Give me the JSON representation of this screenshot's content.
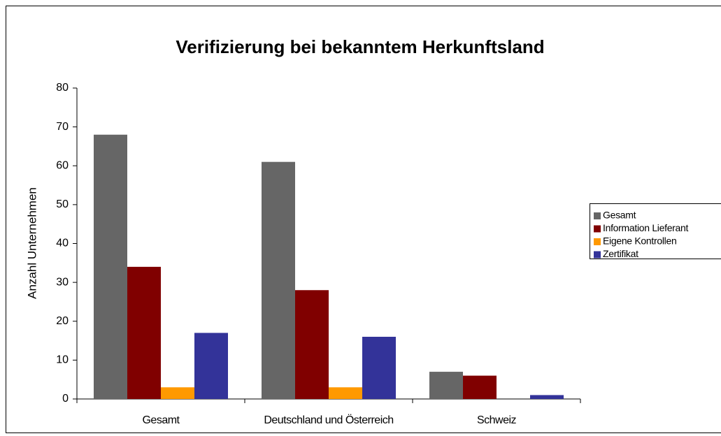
{
  "chart_data": {
    "type": "bar",
    "title": "Verifizierung bei bekanntem Herkunftsland",
    "y_label": "Anzahl Unternehmen",
    "categories": [
      "Gesamt",
      "Deutschland und Österreich",
      "Schweiz"
    ],
    "series": [
      {
        "name": "Gesamt",
        "color": "#666666",
        "values": [
          68,
          61,
          7
        ]
      },
      {
        "name": "Information Lieferant",
        "color": "#800000",
        "values": [
          34,
          28,
          6
        ]
      },
      {
        "name": "Eigene Kontrollen",
        "color": "#ff9900",
        "values": [
          3,
          3,
          0
        ]
      },
      {
        "name": "Zertifikat",
        "color": "#333399",
        "values": [
          17,
          16,
          1
        ]
      }
    ],
    "ylim": [
      0,
      80
    ],
    "yticks": [
      0,
      10,
      20,
      30,
      40,
      50,
      60,
      70,
      80
    ],
    "grid": false,
    "legend": "right"
  }
}
